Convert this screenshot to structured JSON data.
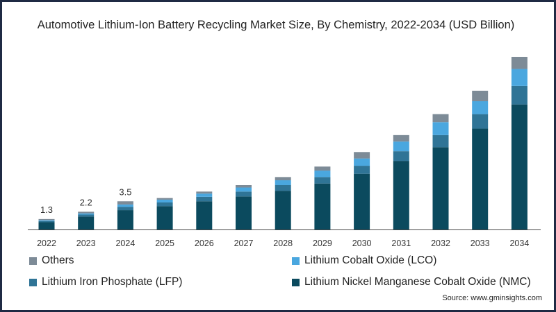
{
  "chart_data": {
    "type": "bar",
    "stacked": true,
    "title": "Automotive Lithium-Ion Battery Recycling Market Size, By Chemistry, 2022-2034 (USD Billion)",
    "xlabel": "",
    "ylabel": "",
    "categories": [
      "2022",
      "2023",
      "2024",
      "2025",
      "2026",
      "2027",
      "2028",
      "2029",
      "2030",
      "2031",
      "2032",
      "2033",
      "2034"
    ],
    "series": [
      {
        "name": "Lithium Nickel Manganese Cobalt Oxide (NMC)",
        "color": "#0b4a5e",
        "values": [
          0.9,
          1.6,
          2.4,
          2.9,
          3.5,
          4.1,
          4.8,
          5.7,
          6.9,
          8.5,
          10.2,
          12.5,
          15.5
        ]
      },
      {
        "name": "Lithium Iron Phosphate (LFP)",
        "color": "#2f7496",
        "values": [
          0.15,
          0.25,
          0.4,
          0.45,
          0.55,
          0.6,
          0.7,
          0.8,
          1.0,
          1.2,
          1.5,
          1.8,
          2.3
        ]
      },
      {
        "name": "Lithium Cobalt Oxide (LCO)",
        "color": "#4aa7df",
        "values": [
          0.1,
          0.15,
          0.3,
          0.35,
          0.4,
          0.5,
          0.6,
          0.8,
          0.9,
          1.2,
          1.6,
          1.6,
          2.1
        ]
      },
      {
        "name": "Others",
        "color": "#7d8b97",
        "values": [
          0.15,
          0.2,
          0.4,
          0.2,
          0.25,
          0.3,
          0.4,
          0.5,
          0.8,
          0.8,
          1.0,
          1.3,
          1.5
        ]
      }
    ],
    "data_labels": [
      {
        "category": "2022",
        "text": "1.3"
      },
      {
        "category": "2023",
        "text": "2.2"
      },
      {
        "category": "2024",
        "text": "3.5"
      }
    ],
    "ylim": [
      0,
      22
    ],
    "grid": false,
    "legend_position": "bottom"
  },
  "legend_order": [
    3,
    2,
    1,
    0
  ],
  "source": "Source: www.gminsights.com"
}
